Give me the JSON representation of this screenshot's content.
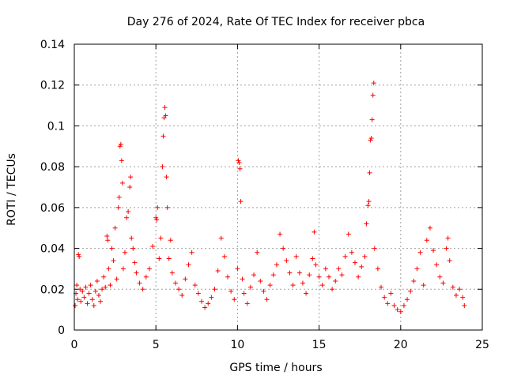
{
  "chart_data": {
    "type": "scatter",
    "title": "Day 276 of 2024, Rate Of TEC Index for receiver pbca",
    "xlabel": "GPS time / hours",
    "ylabel": "ROTI / TECUs",
    "xlim": [
      0,
      25
    ],
    "ylim": [
      0,
      0.14
    ],
    "x_ticks": [
      "0",
      "5",
      "10",
      "15",
      "20",
      "25"
    ],
    "y_ticks": [
      "0",
      "0.02",
      "0.04",
      "0.06",
      "0.08",
      "0.1",
      "0.12",
      "0.14"
    ],
    "grid": true,
    "marker": "+",
    "color": "#ff0000",
    "series": [
      {
        "name": "ROTI",
        "points": [
          [
            0.05,
            0.012
          ],
          [
            0.1,
            0.018
          ],
          [
            0.15,
            0.022
          ],
          [
            0.2,
            0.015
          ],
          [
            0.25,
            0.037
          ],
          [
            0.3,
            0.036
          ],
          [
            0.35,
            0.02
          ],
          [
            0.4,
            0.014
          ],
          [
            0.5,
            0.019
          ],
          [
            0.6,
            0.016
          ],
          [
            0.7,
            0.021
          ],
          [
            0.8,
            0.013
          ],
          [
            0.9,
            0.018
          ],
          [
            1.0,
            0.022
          ],
          [
            1.1,
            0.015
          ],
          [
            1.2,
            0.012
          ],
          [
            1.3,
            0.019
          ],
          [
            1.4,
            0.024
          ],
          [
            1.5,
            0.017
          ],
          [
            1.6,
            0.014
          ],
          [
            1.7,
            0.02
          ],
          [
            1.8,
            0.026
          ],
          [
            1.9,
            0.021
          ],
          [
            2.0,
            0.046
          ],
          [
            2.05,
            0.044
          ],
          [
            2.1,
            0.03
          ],
          [
            2.2,
            0.022
          ],
          [
            2.3,
            0.04
          ],
          [
            2.4,
            0.034
          ],
          [
            2.5,
            0.05
          ],
          [
            2.6,
            0.025
          ],
          [
            2.7,
            0.06
          ],
          [
            2.75,
            0.065
          ],
          [
            2.8,
            0.09
          ],
          [
            2.85,
            0.091
          ],
          [
            2.9,
            0.083
          ],
          [
            2.95,
            0.072
          ],
          [
            3.0,
            0.03
          ],
          [
            3.1,
            0.038
          ],
          [
            3.2,
            0.055
          ],
          [
            3.3,
            0.058
          ],
          [
            3.4,
            0.07
          ],
          [
            3.45,
            0.075
          ],
          [
            3.5,
            0.045
          ],
          [
            3.6,
            0.04
          ],
          [
            3.7,
            0.033
          ],
          [
            3.8,
            0.028
          ],
          [
            4.0,
            0.023
          ],
          [
            4.2,
            0.02
          ],
          [
            4.4,
            0.026
          ],
          [
            4.6,
            0.03
          ],
          [
            4.8,
            0.041
          ],
          [
            5.0,
            0.055
          ],
          [
            5.05,
            0.054
          ],
          [
            5.1,
            0.06
          ],
          [
            5.2,
            0.035
          ],
          [
            5.3,
            0.045
          ],
          [
            5.4,
            0.08
          ],
          [
            5.45,
            0.095
          ],
          [
            5.5,
            0.104
          ],
          [
            5.55,
            0.109
          ],
          [
            5.6,
            0.105
          ],
          [
            5.65,
            0.075
          ],
          [
            5.7,
            0.06
          ],
          [
            5.8,
            0.035
          ],
          [
            5.9,
            0.044
          ],
          [
            6.0,
            0.028
          ],
          [
            6.2,
            0.023
          ],
          [
            6.4,
            0.02
          ],
          [
            6.6,
            0.017
          ],
          [
            6.8,
            0.025
          ],
          [
            7.0,
            0.032
          ],
          [
            7.2,
            0.038
          ],
          [
            7.4,
            0.022
          ],
          [
            7.6,
            0.018
          ],
          [
            7.8,
            0.014
          ],
          [
            8.0,
            0.011
          ],
          [
            8.2,
            0.013
          ],
          [
            8.4,
            0.016
          ],
          [
            8.6,
            0.02
          ],
          [
            8.8,
            0.029
          ],
          [
            9.0,
            0.045
          ],
          [
            9.2,
            0.036
          ],
          [
            9.4,
            0.026
          ],
          [
            9.6,
            0.019
          ],
          [
            9.8,
            0.015
          ],
          [
            10.0,
            0.03
          ],
          [
            10.05,
            0.083
          ],
          [
            10.1,
            0.082
          ],
          [
            10.15,
            0.079
          ],
          [
            10.2,
            0.063
          ],
          [
            10.3,
            0.025
          ],
          [
            10.4,
            0.018
          ],
          [
            10.6,
            0.013
          ],
          [
            10.8,
            0.021
          ],
          [
            11.0,
            0.027
          ],
          [
            11.2,
            0.038
          ],
          [
            11.4,
            0.024
          ],
          [
            11.6,
            0.019
          ],
          [
            11.8,
            0.015
          ],
          [
            12.0,
            0.022
          ],
          [
            12.2,
            0.027
          ],
          [
            12.4,
            0.032
          ],
          [
            12.6,
            0.047
          ],
          [
            12.8,
            0.04
          ],
          [
            13.0,
            0.034
          ],
          [
            13.2,
            0.028
          ],
          [
            13.4,
            0.022
          ],
          [
            13.6,
            0.036
          ],
          [
            13.8,
            0.028
          ],
          [
            14.0,
            0.023
          ],
          [
            14.2,
            0.018
          ],
          [
            14.4,
            0.027
          ],
          [
            14.6,
            0.035
          ],
          [
            14.7,
            0.048
          ],
          [
            14.8,
            0.032
          ],
          [
            15.0,
            0.026
          ],
          [
            15.2,
            0.022
          ],
          [
            15.4,
            0.03
          ],
          [
            15.6,
            0.026
          ],
          [
            15.8,
            0.02
          ],
          [
            16.0,
            0.024
          ],
          [
            16.2,
            0.03
          ],
          [
            16.4,
            0.027
          ],
          [
            16.6,
            0.036
          ],
          [
            16.8,
            0.047
          ],
          [
            17.0,
            0.038
          ],
          [
            17.2,
            0.033
          ],
          [
            17.4,
            0.026
          ],
          [
            17.6,
            0.031
          ],
          [
            17.8,
            0.036
          ],
          [
            17.9,
            0.052
          ],
          [
            18.0,
            0.061
          ],
          [
            18.05,
            0.063
          ],
          [
            18.1,
            0.077
          ],
          [
            18.15,
            0.093
          ],
          [
            18.2,
            0.094
          ],
          [
            18.25,
            0.103
          ],
          [
            18.3,
            0.115
          ],
          [
            18.35,
            0.121
          ],
          [
            18.4,
            0.04
          ],
          [
            18.6,
            0.03
          ],
          [
            18.8,
            0.021
          ],
          [
            19.0,
            0.016
          ],
          [
            19.2,
            0.013
          ],
          [
            19.4,
            0.018
          ],
          [
            19.6,
            0.012
          ],
          [
            19.8,
            0.01
          ],
          [
            20.0,
            0.009
          ],
          [
            20.2,
            0.012
          ],
          [
            20.4,
            0.015
          ],
          [
            20.6,
            0.019
          ],
          [
            20.8,
            0.024
          ],
          [
            21.0,
            0.03
          ],
          [
            21.2,
            0.038
          ],
          [
            21.4,
            0.022
          ],
          [
            21.6,
            0.044
          ],
          [
            21.8,
            0.05
          ],
          [
            22.0,
            0.039
          ],
          [
            22.2,
            0.032
          ],
          [
            22.4,
            0.026
          ],
          [
            22.6,
            0.023
          ],
          [
            22.8,
            0.04
          ],
          [
            22.9,
            0.045
          ],
          [
            23.0,
            0.034
          ],
          [
            23.2,
            0.021
          ],
          [
            23.4,
            0.017
          ],
          [
            23.6,
            0.02
          ],
          [
            23.8,
            0.016
          ],
          [
            23.9,
            0.012
          ]
        ]
      }
    ]
  }
}
